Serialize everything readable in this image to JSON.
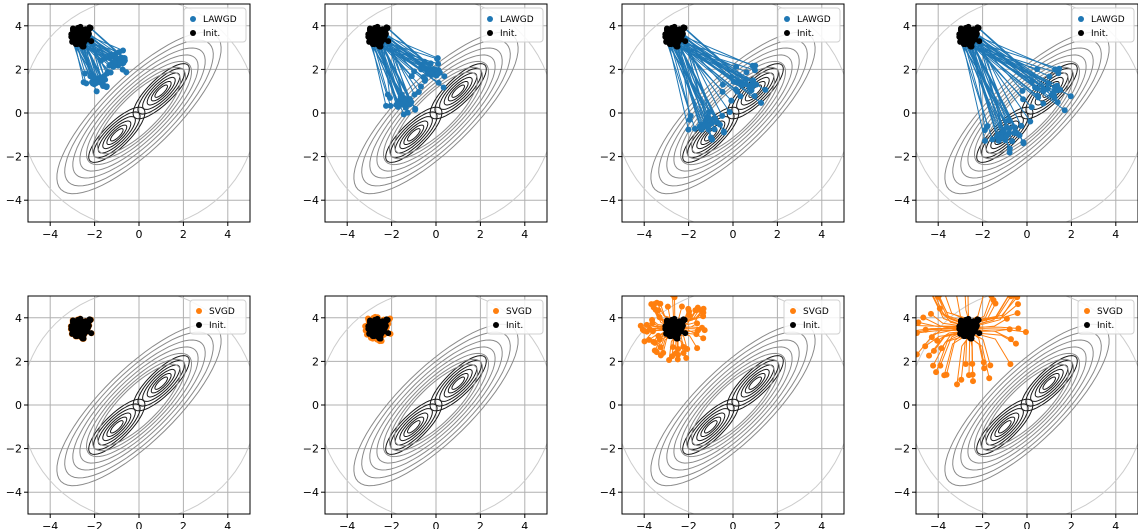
{
  "chart_data": {
    "type": "scatter",
    "layout": {
      "rows": 2,
      "cols": 4
    },
    "xlim": [
      -5,
      5
    ],
    "ylim": [
      -5,
      5
    ],
    "xticks": [
      -4,
      -2,
      0,
      2,
      4
    ],
    "yticks": [
      -4,
      -2,
      0,
      2,
      4
    ],
    "grid": true,
    "legend_position": "top-right",
    "contour": {
      "modes": [
        [
          -1,
          -1
        ],
        [
          1,
          1
        ]
      ],
      "mode_correlation": 0.8,
      "inner_levels": [
        0.08,
        0.2,
        0.4,
        0.7,
        1.1,
        1.6
      ],
      "outer_levels": [
        2.3,
        3.2,
        4.4,
        5.9,
        7.7,
        10.0,
        12.5
      ],
      "outermost_radius": 5.3,
      "colors": {
        "inner": "#1a1a1a",
        "outer": "#8a8a8a",
        "outermost": "#cccccc"
      }
    },
    "init_cloud": {
      "center": [
        -2.6,
        3.5
      ],
      "spread": [
        0.28,
        0.28
      ],
      "count": 60,
      "color": "#000000",
      "label": "Init."
    },
    "colors": {
      "LAWGD": "#1f77b4",
      "SVGD": "#ff7f0e",
      "grid": "#b0b0b0"
    },
    "panels": [
      {
        "row": 0,
        "col": 0,
        "method": "LAWGD",
        "label": "LAWGD",
        "progress": 0.35
      },
      {
        "row": 0,
        "col": 1,
        "method": "LAWGD",
        "label": "LAWGD",
        "progress": 0.55
      },
      {
        "row": 0,
        "col": 2,
        "method": "LAWGD",
        "label": "LAWGD",
        "progress": 0.8
      },
      {
        "row": 0,
        "col": 3,
        "method": "LAWGD",
        "label": "LAWGD",
        "progress": 1.0
      },
      {
        "row": 1,
        "col": 0,
        "method": "SVGD",
        "label": "SVGD",
        "progress": 0.1
      },
      {
        "row": 1,
        "col": 1,
        "method": "SVGD",
        "label": "SVGD",
        "progress": 0.25
      },
      {
        "row": 1,
        "col": 2,
        "method": "SVGD",
        "label": "SVGD",
        "progress": 0.7
      },
      {
        "row": 1,
        "col": 3,
        "method": "SVGD",
        "label": "SVGD",
        "progress": 1.0
      }
    ]
  }
}
